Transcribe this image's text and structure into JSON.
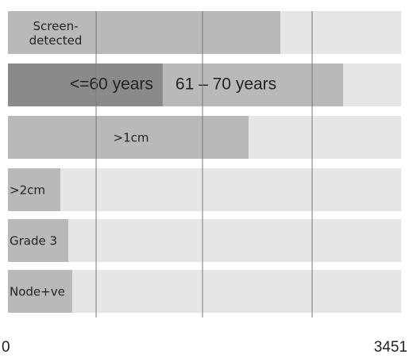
{
  "chart_data": {
    "type": "bar",
    "orientation": "horizontal",
    "rows": [
      {
        "label": "Screen-\ndetected",
        "value": 2391,
        "color": "#b9b9b9"
      },
      {
        "segments": [
          {
            "label": "<=60 years",
            "value": 1359,
            "color": "#8a8a8a"
          },
          {
            "label": "61 – 70 years",
            "value": 1583,
            "color": "#b9b9b9"
          }
        ]
      },
      {
        "label": ">1cm",
        "value": 2112,
        "color": "#b9b9b9"
      },
      {
        "label": ">2cm",
        "value": 460,
        "color": "#b9b9b9"
      },
      {
        "label": "Grade 3",
        "value": 530,
        "color": "#b9b9b9"
      },
      {
        "label": "Node+ve",
        "value": 565,
        "color": "#b9b9b9"
      }
    ],
    "track_color": "#e6e6e6",
    "xlim": [
      0,
      3451
    ],
    "xticks": [
      0,
      3451
    ],
    "grid_lines": [
      774,
      1708,
      2670
    ]
  }
}
